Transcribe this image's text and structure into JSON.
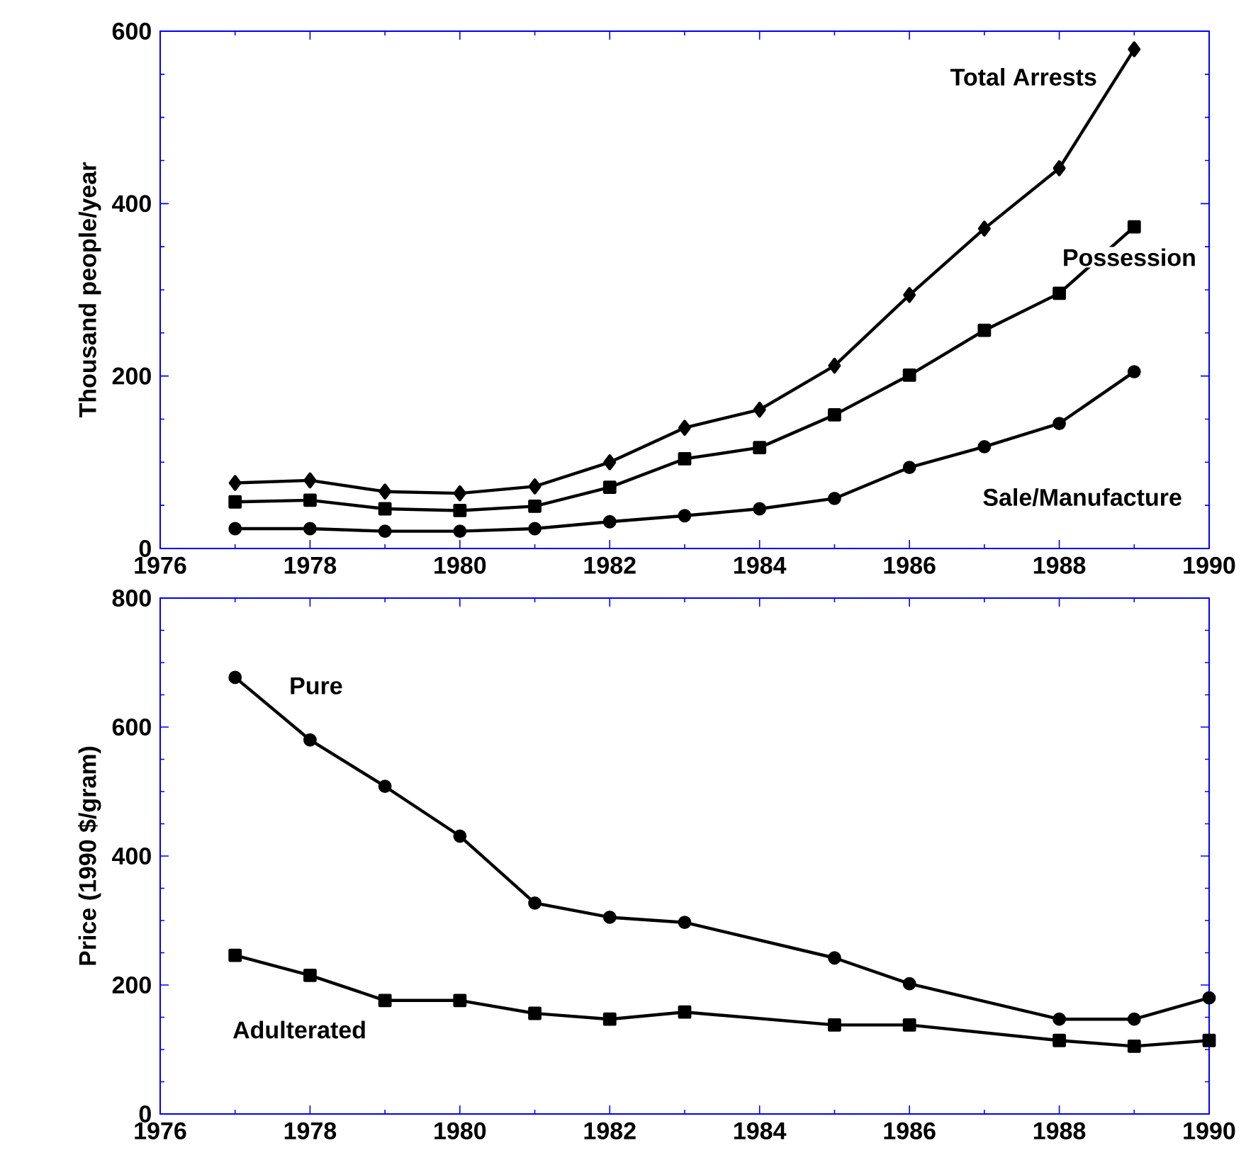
{
  "chart_data": [
    {
      "type": "line",
      "ylabel": "Thousand people/year",
      "x": [
        1977,
        1978,
        1979,
        1980,
        1981,
        1982,
        1983,
        1984,
        1985,
        1986,
        1987,
        1988,
        1989
      ],
      "series": [
        {
          "name": "Total Arrests",
          "color": "#000000",
          "marker": "diamond",
          "values": [
            76,
            79,
            66,
            64,
            72,
            100,
            140,
            161,
            212,
            294,
            371,
            441,
            579
          ]
        },
        {
          "name": "Possession",
          "color": "#000000",
          "marker": "square",
          "values": [
            54,
            56,
            46,
            44,
            49,
            71,
            104,
            117,
            155,
            201,
            253,
            296,
            373
          ]
        },
        {
          "name": "Sale/Manufacture",
          "color": "#000000",
          "marker": "circle",
          "values": [
            23,
            23,
            20,
            20,
            23,
            31,
            38,
            46,
            58,
            94,
            118,
            145,
            205
          ]
        }
      ],
      "xlim": [
        1976,
        1990
      ],
      "ylim": [
        0,
        600
      ],
      "xticks": [
        1976,
        1978,
        1980,
        1982,
        1984,
        1986,
        1988,
        1990
      ],
      "yticks": [
        0,
        200,
        400,
        600
      ],
      "line_style": "solid"
    },
    {
      "type": "line",
      "ylabel": "Price (1990 $/gram)",
      "x": [
        1977,
        1978,
        1979,
        1980,
        1981,
        1982,
        1983,
        1985,
        1986,
        1988,
        1989,
        1990
      ],
      "series": [
        {
          "name": "Pure",
          "color": "#000000",
          "marker": "circle",
          "values": [
            677,
            580,
            508,
            431,
            327,
            305,
            297,
            242,
            202,
            147,
            147,
            180
          ]
        },
        {
          "name": "Adulterated",
          "color": "#000000",
          "marker": "square",
          "values": [
            246,
            215,
            176,
            176,
            156,
            147,
            158,
            138,
            138,
            114,
            105,
            114
          ]
        }
      ],
      "xlim": [
        1976,
        1990
      ],
      "ylim": [
        0,
        800
      ],
      "xticks": [
        1976,
        1978,
        1980,
        1982,
        1984,
        1986,
        1988,
        1990
      ],
      "yticks": [
        0,
        200,
        400,
        600,
        800
      ],
      "line_style": "solid"
    }
  ]
}
